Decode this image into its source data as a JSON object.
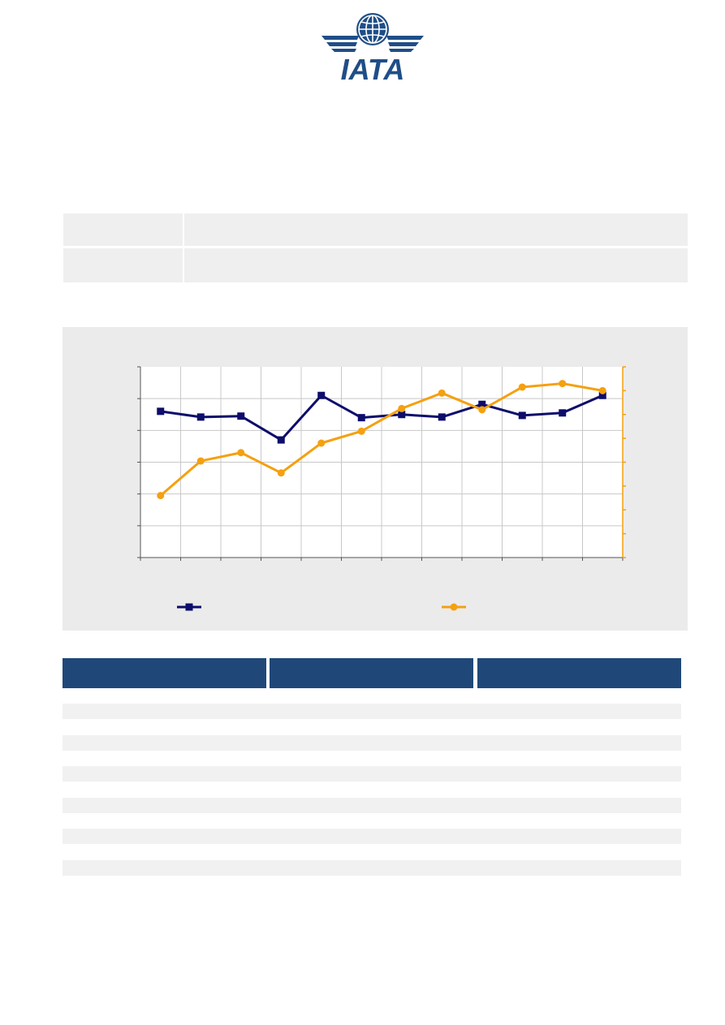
{
  "logo": {
    "text": "IATA",
    "colors": {
      "primary": "#1f4e87"
    }
  },
  "info_table": {
    "rows": [
      {
        "label": "",
        "value": ""
      },
      {
        "label": "",
        "value": ""
      }
    ]
  },
  "chart_data": {
    "type": "line",
    "title": "",
    "xlabel": "",
    "ylabel": "",
    "y2label": "",
    "grid": true,
    "legend": "bottom",
    "x": [
      1,
      2,
      3,
      4,
      5,
      6,
      7,
      8,
      9,
      10,
      11,
      12
    ],
    "ylim": [
      0,
      6
    ],
    "y2lim": [
      0,
      8
    ],
    "series": [
      {
        "name": "",
        "axis": "left",
        "marker": "square",
        "color": "#0d0d6b",
        "values": [
          4.6,
          4.42,
          4.45,
          3.7,
          5.1,
          4.4,
          4.5,
          4.42,
          4.82,
          4.47,
          4.55,
          5.1
        ]
      },
      {
        "name": "",
        "axis": "right",
        "marker": "circle",
        "color": "#f5a00f",
        "values": [
          2.6,
          4.05,
          4.4,
          3.55,
          4.8,
          5.3,
          6.25,
          6.9,
          6.2,
          7.15,
          7.3,
          7.0
        ]
      }
    ],
    "colors": {
      "panel": "#ebebeb",
      "grid": "#c8c8c8",
      "right_axis": "#f5a00f"
    }
  },
  "data_table": {
    "header_color": "#1f4879",
    "headers": [
      "",
      "",
      ""
    ],
    "rows": [
      [
        "",
        "",
        ""
      ],
      [
        "",
        "",
        ""
      ],
      [
        "",
        "",
        ""
      ],
      [
        "",
        "",
        ""
      ],
      [
        "",
        "",
        ""
      ],
      [
        "",
        "",
        ""
      ],
      [
        "",
        "",
        ""
      ],
      [
        "",
        "",
        ""
      ],
      [
        "",
        "",
        ""
      ],
      [
        "",
        "",
        ""
      ],
      [
        "",
        "",
        ""
      ],
      [
        "",
        "",
        ""
      ]
    ]
  }
}
